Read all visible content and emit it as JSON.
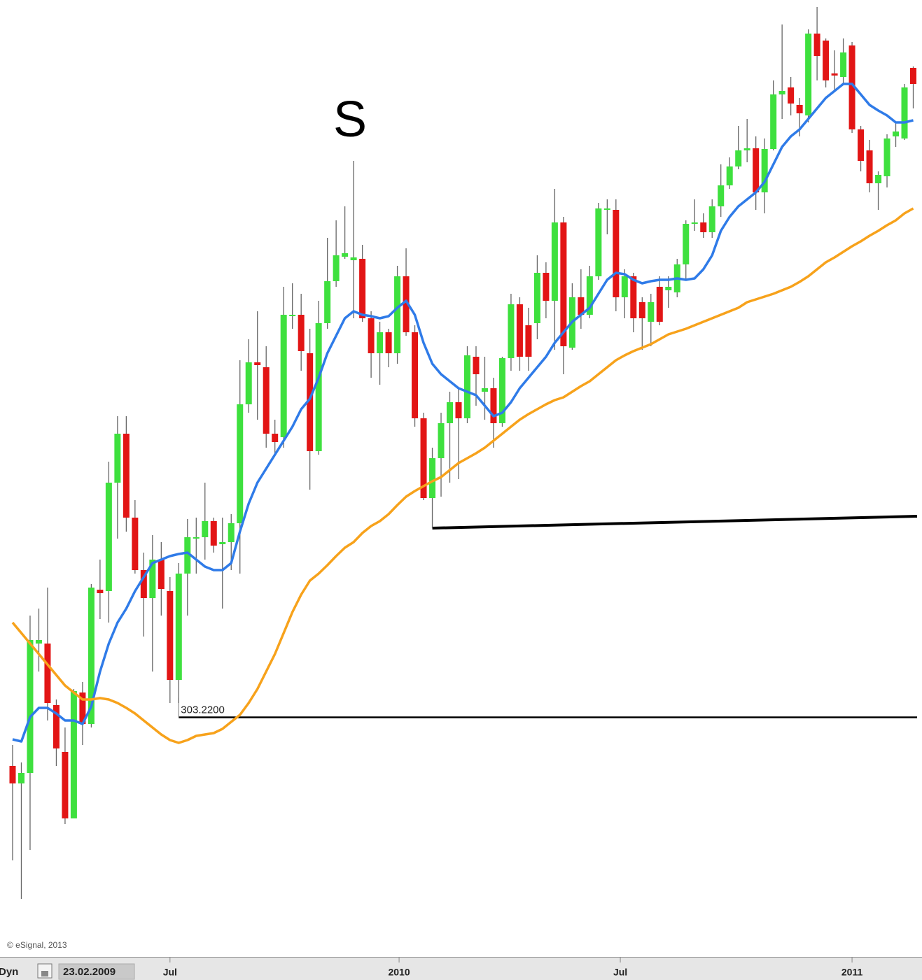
{
  "chart_data": {
    "type": "candlestick",
    "annotation": "S",
    "up_color": "#3ee03e",
    "down_color": "#e21515",
    "xlim": [
      -1.44,
      103.44
    ],
    "ylim": [
      146,
      816
    ],
    "xticks": [
      {
        "value": 18,
        "label": "Jul"
      },
      {
        "value": 44.2,
        "label": "2010"
      },
      {
        "value": 69.5,
        "label": "Jul"
      },
      {
        "value": 96,
        "label": "2011"
      }
    ],
    "ohlc": [
      [
        268.5,
        283.5,
        201,
        256
      ],
      [
        256,
        271,
        173.5,
        263.5
      ],
      [
        263.5,
        376,
        208.5,
        358.5
      ],
      [
        356,
        381,
        336,
        358.5
      ],
      [
        356,
        396,
        301,
        313.5
      ],
      [
        312,
        316,
        268.5,
        281
      ],
      [
        278.5,
        296,
        227,
        231
      ],
      [
        231,
        323.5,
        231,
        322
      ],
      [
        321,
        328.5,
        283.5,
        298.5
      ],
      [
        298.5,
        398.5,
        296,
        396
      ],
      [
        394.5,
        416,
        373.5,
        392
      ],
      [
        393.5,
        486,
        371,
        471
      ],
      [
        471,
        518.5,
        431,
        506
      ],
      [
        506,
        518.5,
        436,
        446
      ],
      [
        446,
        458.5,
        406,
        408.5
      ],
      [
        408.5,
        421,
        361,
        388.5
      ],
      [
        388.5,
        433.5,
        336,
        416
      ],
      [
        416,
        428.5,
        376,
        395
      ],
      [
        393.5,
        403.5,
        313.5,
        330
      ],
      [
        330,
        413.5,
        313.5,
        406
      ],
      [
        406,
        445,
        376,
        432
      ],
      [
        431,
        446,
        406,
        432
      ],
      [
        432,
        471,
        416,
        443.5
      ],
      [
        443.5,
        446,
        421,
        426
      ],
      [
        427,
        446,
        381,
        428.5
      ],
      [
        428.5,
        448.5,
        408.5,
        442
      ],
      [
        442,
        558.5,
        406,
        527
      ],
      [
        527,
        573.5,
        521,
        557
      ],
      [
        557,
        593.5,
        516,
        555
      ],
      [
        553.5,
        568.5,
        496,
        506
      ],
      [
        506,
        516,
        491,
        500
      ],
      [
        503.5,
        611,
        496,
        591
      ],
      [
        590,
        613.5,
        581,
        591
      ],
      [
        591,
        606,
        551,
        565
      ],
      [
        563.5,
        581,
        466,
        493.5
      ],
      [
        493.5,
        601,
        491,
        585
      ],
      [
        585,
        646,
        581,
        615
      ],
      [
        615,
        658.5,
        611,
        633.5
      ],
      [
        632.5,
        668.5,
        631,
        635
      ],
      [
        630,
        701,
        588.5,
        632
      ],
      [
        631,
        641,
        586,
        588.5
      ],
      [
        588.5,
        593.5,
        546,
        563.5
      ],
      [
        563.5,
        586,
        541,
        578.5
      ],
      [
        578.5,
        581,
        553.5,
        563.5
      ],
      [
        563.5,
        626,
        556,
        618.5
      ],
      [
        618.5,
        638.5,
        576,
        578.5
      ],
      [
        578.5,
        583.5,
        511,
        517
      ],
      [
        517,
        521,
        458.5,
        460
      ],
      [
        460,
        496,
        438.5,
        488.5
      ],
      [
        488.5,
        521,
        461,
        513.5
      ],
      [
        513.5,
        536,
        471,
        528.5
      ],
      [
        528.5,
        538.5,
        473.5,
        517
      ],
      [
        517,
        568.5,
        513.5,
        562
      ],
      [
        561,
        568.5,
        526,
        548.5
      ],
      [
        536,
        561,
        516,
        538.5
      ],
      [
        538.5,
        546,
        496,
        513.5
      ],
      [
        513.5,
        561,
        511,
        560
      ],
      [
        560,
        606,
        551,
        598.5
      ],
      [
        598.5,
        603.5,
        551,
        561
      ],
      [
        583.5,
        596,
        551,
        561
      ],
      [
        585,
        633.5,
        573.5,
        621
      ],
      [
        621,
        628.5,
        588.5,
        601
      ],
      [
        601,
        681,
        566,
        657
      ],
      [
        657,
        661,
        548.5,
        568.5
      ],
      [
        567.5,
        613.5,
        566,
        603.5
      ],
      [
        603.5,
        623.5,
        581,
        591
      ],
      [
        591,
        626,
        588.5,
        618.5
      ],
      [
        618.5,
        671,
        616,
        667
      ],
      [
        666,
        673.5,
        648.5,
        667
      ],
      [
        666,
        673.5,
        593.5,
        603.5
      ],
      [
        603.5,
        623.5,
        588.5,
        618.5
      ],
      [
        618.5,
        621,
        578.5,
        588.5
      ],
      [
        600,
        603.5,
        566,
        588.5
      ],
      [
        586,
        606,
        568.5,
        600
      ],
      [
        611,
        618.5,
        583.5,
        586
      ],
      [
        608.5,
        618.5,
        596,
        611
      ],
      [
        607,
        631,
        603.5,
        627
      ],
      [
        627,
        658.5,
        616,
        656
      ],
      [
        656,
        673.5,
        651,
        657
      ],
      [
        657,
        663.5,
        646,
        650
      ],
      [
        650,
        673.5,
        646,
        668.5
      ],
      [
        668.5,
        698.5,
        661,
        683.5
      ],
      [
        683.5,
        703.5,
        681,
        697
      ],
      [
        697,
        726,
        695,
        708.5
      ],
      [
        708.5,
        731,
        700,
        710
      ],
      [
        710,
        718.5,
        666,
        678.5
      ],
      [
        678.5,
        717,
        663.5,
        709.5
      ],
      [
        709.5,
        758.5,
        708.5,
        748.5
      ],
      [
        748.5,
        798.5,
        731,
        751
      ],
      [
        753.5,
        761,
        733.5,
        742
      ],
      [
        741,
        746,
        718.5,
        735
      ],
      [
        733.5,
        795,
        728.5,
        792
      ],
      [
        792,
        811,
        758.5,
        776
      ],
      [
        787,
        788.5,
        753.5,
        758.5
      ],
      [
        763.5,
        780,
        751,
        762
      ],
      [
        761,
        788.5,
        756,
        778.5
      ],
      [
        783.5,
        786,
        721,
        723.5
      ],
      [
        723.5,
        726,
        693.5,
        701
      ],
      [
        708.5,
        716,
        678.5,
        685
      ],
      [
        685,
        693.5,
        666,
        691
      ],
      [
        690,
        720,
        682,
        717
      ],
      [
        718.5,
        728.5,
        711,
        722
      ],
      [
        717,
        756,
        716,
        753.5
      ],
      [
        767.5,
        768.5,
        738.5,
        756
      ]
    ],
    "overlays": [
      {
        "color": "#2f7be8",
        "values": [
          287.5,
          286,
          303.5,
          310,
          310,
          306,
          301,
          301,
          298.5,
          311,
          336,
          356,
          371,
          381,
          393.5,
          403.5,
          413.5,
          416,
          418.5,
          420,
          421,
          416,
          411,
          408.5,
          408.5,
          413.5,
          436,
          456,
          471,
          481,
          491,
          501,
          511,
          523.5,
          531,
          546,
          563.5,
          576,
          588.5,
          593.5,
          591,
          590,
          588.5,
          590,
          596,
          601,
          591,
          571,
          556,
          548.5,
          543.5,
          538.5,
          536,
          533.5,
          526,
          518.5,
          521,
          528.5,
          538.5,
          546,
          553.5,
          561,
          571,
          578.5,
          586,
          591,
          596,
          606,
          616,
          621,
          620,
          616,
          613.5,
          615,
          616,
          616,
          617,
          616,
          617,
          623.5,
          633.5,
          651,
          661,
          668.5,
          673.5,
          678.5,
          686,
          698.5,
          711,
          718.5,
          723.5,
          731,
          738.5,
          746,
          751,
          756,
          756,
          748.5,
          741,
          737,
          733.5,
          728.5,
          728.5,
          730
        ]
      },
      {
        "color": "#f7a21b",
        "values": [
          371,
          363.5,
          356,
          348.5,
          341,
          333.5,
          326,
          321,
          316,
          316,
          317,
          316,
          313.5,
          310,
          306,
          301,
          296,
          291,
          287,
          285,
          287,
          290,
          291,
          292,
          295,
          300,
          305,
          313.5,
          323.5,
          336,
          348.5,
          363.5,
          378.5,
          391,
          401,
          406,
          412,
          418.5,
          424.5,
          428.5,
          435,
          440,
          443.5,
          448.5,
          455,
          461,
          465,
          468.5,
          472,
          475,
          480,
          485,
          488.5,
          492,
          496,
          501,
          506,
          511,
          516,
          520,
          523.5,
          527,
          530,
          532,
          536,
          540,
          543.5,
          548.5,
          553.5,
          558.5,
          562,
          565,
          567.5,
          570,
          573.5,
          577,
          579,
          581,
          583.5,
          586,
          588.5,
          591,
          593.5,
          596,
          600,
          602,
          604,
          606,
          608.5,
          611,
          614.5,
          618.5,
          623.5,
          628.5,
          632,
          636,
          640,
          643.5,
          647.5,
          651,
          655,
          658.5,
          663.5,
          667
        ]
      }
    ],
    "hline": {
      "value": 303.22,
      "label": "303.2200",
      "x": 19
    },
    "trendline": {
      "x": [
        48,
        103.44
      ],
      "y": [
        438.5,
        447
      ]
    }
  },
  "footer": {
    "copyright": "© eSignal, 2013",
    "mode": "Dyn",
    "date": "23.02.2009"
  }
}
